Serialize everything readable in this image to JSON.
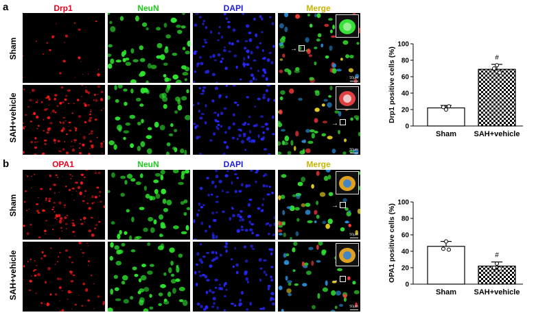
{
  "panels": [
    {
      "letter": "a",
      "columns": [
        {
          "label": "Drp1",
          "color": "#e8001c"
        },
        {
          "label": "NeuN",
          "color": "#1ec81e"
        },
        {
          "label": "DAPI",
          "color": "#1a1ad8"
        },
        {
          "label": "Merge",
          "color": "#c8b400"
        }
      ],
      "rows": [
        "Sham",
        "SAH+vehicle"
      ],
      "scale_label": "50μm"
    },
    {
      "letter": "b",
      "columns": [
        {
          "label": "OPA1",
          "color": "#e8001c"
        },
        {
          "label": "NeuN",
          "color": "#1ec81e"
        },
        {
          "label": "DAPI",
          "color": "#1a1ad8"
        },
        {
          "label": "Merge",
          "color": "#c8b400"
        }
      ],
      "rows": [
        "Sham",
        "SAH+vehicle"
      ],
      "scale_label": "50μm"
    }
  ],
  "chart_data": [
    {
      "type": "bar",
      "categories": [
        "Sham",
        "SAH+vehicle"
      ],
      "values": [
        22,
        69
      ],
      "errors": [
        3,
        6
      ],
      "points": [
        [
          20,
          23,
          24
        ],
        [
          74,
          70,
          65
        ]
      ],
      "ylabel": "Drp1 positive cells (%)",
      "ylim": [
        0,
        100
      ],
      "yticks": [
        0,
        20,
        40,
        60,
        80,
        100
      ],
      "annotations": [
        "",
        "#"
      ],
      "fills": [
        "white",
        "checkered"
      ]
    },
    {
      "type": "bar",
      "categories": [
        "Sham",
        "SAH+vehicle"
      ],
      "values": [
        46,
        22
      ],
      "errors": [
        6,
        5
      ],
      "points": [
        [
          52,
          43,
          42
        ],
        [
          25,
          20,
          19
        ]
      ],
      "ylabel": "OPA1 positive cells (%)",
      "ylim": [
        0,
        100
      ],
      "yticks": [
        0,
        20,
        40,
        60,
        80,
        100
      ],
      "annotations": [
        "",
        "#"
      ],
      "fills": [
        "white",
        "checkered"
      ]
    }
  ]
}
